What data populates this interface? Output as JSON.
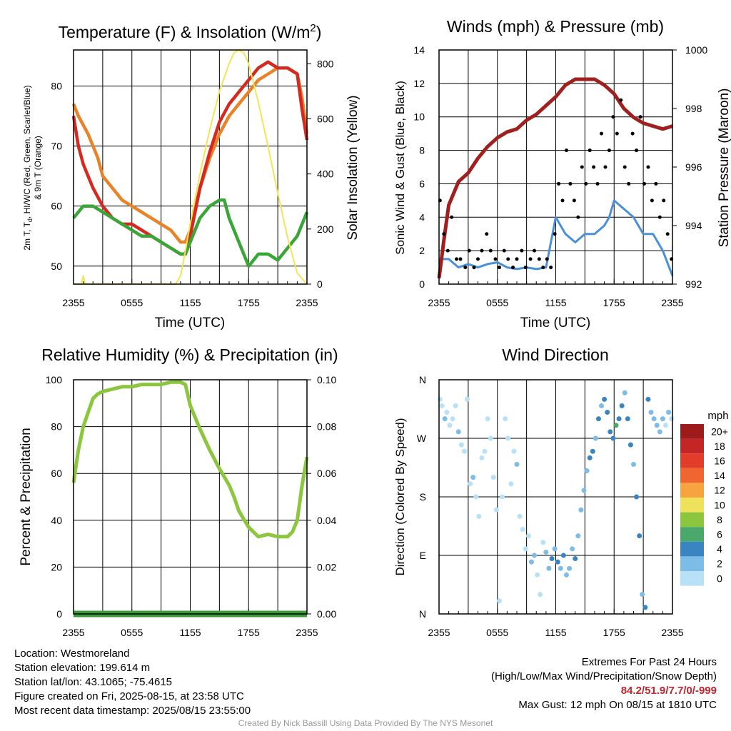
{
  "chart_data": [
    {
      "type": "line",
      "title": "Temperature (F) & Insolation (W/m²)",
      "xlabel": "Time (UTC)",
      "ylabel_left_lines": [
        "2m T, Td, HI/WC (Red, Green, Scarlet/Blue)",
        "& 9m T (Orange)"
      ],
      "ylabel_right": "Solar Insolation (Yellow)",
      "x_ticks": [
        "2355",
        "0555",
        "1155",
        "1755",
        "2355"
      ],
      "x_range_hours": [
        0,
        24
      ],
      "ylim_left": [
        47,
        86
      ],
      "yticks_left": [
        50,
        60,
        70,
        80
      ],
      "ylim_right": [
        0,
        850
      ],
      "yticks_right": [
        0,
        200,
        400,
        600,
        800
      ],
      "grid": true,
      "series": [
        {
          "color": "#e8832a",
          "axis": "left",
          "x": [
            0,
            0.5,
            1.5,
            2.5,
            3,
            4,
            5,
            6,
            7,
            8,
            9,
            10,
            11,
            11.5,
            12,
            13,
            14,
            15,
            16,
            17,
            18,
            19,
            20,
            21,
            22,
            23,
            23.5,
            24
          ],
          "values": [
            77,
            75,
            72,
            68,
            65,
            63,
            61,
            60,
            59,
            58,
            57,
            56,
            54,
            54,
            56,
            63,
            68,
            72,
            75,
            77,
            79,
            81,
            82,
            83,
            83,
            82,
            78,
            72
          ]
        },
        {
          "color": "#d42a20",
          "axis": "left",
          "x": [
            0,
            0.5,
            1,
            1.5,
            2,
            3,
            4,
            5,
            6,
            7,
            8,
            9,
            10,
            11,
            11.5,
            12,
            13,
            14,
            15,
            16,
            17,
            18,
            19,
            20,
            21,
            22,
            23,
            23.5,
            24
          ],
          "values": [
            75,
            70,
            67,
            65,
            63,
            60,
            58,
            57,
            57,
            56,
            55,
            54,
            53,
            52,
            52,
            55,
            63,
            69,
            74,
            77,
            79,
            81,
            83,
            84,
            83,
            83,
            82,
            76,
            71
          ]
        },
        {
          "color": "#3aa637",
          "axis": "left",
          "x": [
            0,
            0.5,
            1,
            2,
            3,
            4,
            5,
            6,
            7,
            8,
            9,
            10,
            11,
            11.5,
            12,
            13,
            14,
            15,
            15.5,
            16,
            17,
            18,
            18.5,
            19,
            20,
            21,
            22,
            22.5,
            23,
            23.5,
            24
          ],
          "values": [
            58,
            59,
            60,
            60,
            59,
            58,
            57,
            56,
            55,
            55,
            54,
            53,
            52,
            52,
            54,
            58,
            60,
            61,
            61,
            58,
            54,
            50,
            51,
            52,
            52,
            51,
            53,
            54,
            55,
            57,
            59
          ]
        },
        {
          "color": "#f5e455",
          "axis": "right",
          "x": [
            0,
            0.8,
            1,
            1.2,
            1.5,
            10.5,
            11,
            11.5,
            12,
            13,
            14,
            15,
            16,
            16.5,
            17,
            17.5,
            18,
            19,
            20,
            21,
            22,
            23,
            24
          ],
          "values": [
            0,
            0,
            30,
            0,
            0,
            0,
            30,
            120,
            220,
            400,
            560,
            700,
            800,
            840,
            850,
            840,
            800,
            660,
            500,
            330,
            170,
            40,
            0
          ]
        }
      ]
    },
    {
      "type": "scatter",
      "title": "Winds (mph) & Pressure (mb)",
      "xlabel": "Time (UTC)",
      "ylabel_left": "Sonic Wind & Gust (Blue, Black)",
      "ylabel_right": "Station Pressure (Maroon)",
      "x_ticks": [
        "2355",
        "0555",
        "1155",
        "1755",
        "2355"
      ],
      "x_range_hours": [
        0,
        24
      ],
      "ylim_left": [
        0,
        14
      ],
      "yticks_left": [
        0,
        2,
        4,
        6,
        8,
        10,
        12,
        14
      ],
      "ylim_right": [
        992,
        1000
      ],
      "yticks_right": [
        992,
        994,
        996,
        998,
        1000
      ],
      "grid": true,
      "pressure": {
        "color": "#a0201f",
        "x": [
          0,
          0.5,
          1,
          2,
          3,
          4,
          5,
          6,
          7,
          8,
          9,
          10,
          11,
          12,
          13,
          13.5,
          14,
          15,
          16,
          17,
          18,
          19,
          20,
          21,
          22,
          23,
          24
        ],
        "values": [
          992.2,
          993.5,
          994.7,
          995.5,
          995.8,
          996.3,
          996.7,
          997.0,
          997.2,
          997.3,
          997.6,
          997.8,
          998.1,
          998.4,
          998.8,
          998.9,
          999.0,
          999.0,
          999.0,
          998.8,
          998.5,
          998.0,
          997.7,
          997.5,
          997.4,
          997.3,
          997.4
        ]
      },
      "wind": {
        "color": "#4a90d9",
        "x": [
          0,
          1,
          2,
          3,
          4,
          5,
          6,
          7,
          8,
          9,
          10,
          11,
          11.5,
          12,
          13,
          14,
          15,
          16,
          17,
          17.5,
          18,
          19,
          20,
          21,
          22,
          23,
          24
        ],
        "values": [
          1.5,
          1.5,
          1.0,
          1.2,
          1.0,
          1.2,
          1.3,
          1.0,
          0.9,
          1.0,
          0.9,
          1.0,
          2.5,
          4.0,
          3.0,
          2.5,
          3.0,
          3.0,
          3.5,
          4.0,
          5.0,
          4.5,
          4.0,
          3.0,
          3.0,
          2.0,
          0.5
        ]
      },
      "gust_color": "#000000",
      "gust": {
        "x": [
          0.1,
          0.5,
          0.9,
          1.3,
          1.8,
          2.2,
          2.7,
          3.1,
          3.6,
          4.0,
          4.4,
          4.9,
          5.3,
          5.8,
          6.2,
          6.7,
          7.1,
          7.6,
          8.0,
          8.5,
          8.9,
          9.4,
          9.8,
          10.3,
          10.7,
          11.1,
          11.5,
          11.9,
          12.3,
          12.7,
          13.1,
          13.5,
          13.9,
          14.3,
          14.7,
          15.1,
          15.5,
          15.9,
          16.3,
          16.7,
          17.1,
          17.5,
          17.9,
          18.3,
          18.7,
          19.1,
          19.5,
          19.9,
          20.3,
          20.7,
          21.1,
          21.5,
          21.9,
          22.3,
          22.7,
          23.1,
          23.5,
          23.9
        ],
        "values": [
          5,
          3,
          2,
          4,
          1.5,
          1.5,
          1,
          2,
          1,
          1.5,
          2,
          3,
          2,
          1.5,
          1,
          2,
          1.5,
          1,
          1.5,
          2,
          1,
          1.5,
          2,
          1.5,
          1,
          1.5,
          1,
          3,
          6,
          5,
          8,
          6,
          5,
          4,
          7,
          6,
          8,
          7,
          6,
          9,
          7,
          8,
          10,
          9,
          11,
          7,
          6,
          9,
          8,
          10,
          6,
          7,
          5,
          6,
          4,
          5,
          3,
          1.5
        ]
      }
    },
    {
      "type": "line",
      "title": "Relative Humidity (%) & Precipitation (in)",
      "ylabel_left": "Percent & Precipitation",
      "x_ticks": [
        "2355",
        "0555",
        "1155",
        "1755",
        "2355"
      ],
      "x_range_hours": [
        0,
        24
      ],
      "ylim_left": [
        0,
        100
      ],
      "yticks_left": [
        0,
        20,
        40,
        60,
        80,
        100
      ],
      "ylim_right": [
        0,
        0.1
      ],
      "yticks_right": [
        "0.00",
        "0.02",
        "0.04",
        "0.06",
        "0.08",
        "0.10"
      ],
      "grid": true,
      "series": [
        {
          "color": "#8cc63f",
          "axis": "left",
          "x": [
            0,
            0.5,
            1,
            1.5,
            2,
            2.5,
            3,
            4,
            5,
            6,
            7,
            8,
            9,
            10,
            11,
            11.5,
            12,
            13,
            14,
            15,
            16,
            16.5,
            17,
            18,
            19,
            20,
            21,
            22,
            22.5,
            23,
            23.5,
            24
          ],
          "values": [
            56,
            70,
            80,
            86,
            92,
            94,
            95,
            96,
            97,
            97,
            98,
            98,
            98,
            99,
            99,
            98,
            89,
            79,
            70,
            62,
            55,
            50,
            44,
            37,
            33,
            34,
            33,
            33,
            35,
            40,
            55,
            67
          ]
        },
        {
          "color": "#3a9a3a",
          "axis": "right",
          "x": [
            0,
            24
          ],
          "values": [
            0,
            0
          ]
        }
      ]
    },
    {
      "type": "scatter",
      "title": "Wind Direction",
      "ylabel_left": "Direction (Colored By Speed)",
      "x_ticks": [
        "2355",
        "0555",
        "1155",
        "1755",
        "2355"
      ],
      "x_range_hours": [
        0,
        24
      ],
      "ylim_left": [
        0,
        360
      ],
      "yticks_left": [
        "N",
        "E",
        "S",
        "W",
        "N"
      ],
      "grid": true,
      "legend_title": "mph",
      "legend": [
        {
          "label": "20+",
          "color": "#9e1b1b"
        },
        {
          "label": "18",
          "color": "#c42626"
        },
        {
          "label": "16",
          "color": "#e13d2a"
        },
        {
          "label": "14",
          "color": "#f06530"
        },
        {
          "label": "12",
          "color": "#f7a340"
        },
        {
          "label": "10",
          "color": "#efe15a"
        },
        {
          "label": "8",
          "color": "#8cc63f"
        },
        {
          "label": "6",
          "color": "#4aa86a"
        },
        {
          "label": "4",
          "color": "#3a84c2"
        },
        {
          "label": "2",
          "color": "#7cbce6"
        },
        {
          "label": "0",
          "color": "#b8e1f7"
        }
      ],
      "points_x": [
        0.1,
        0.3,
        0.6,
        0.8,
        1.1,
        1.4,
        1.7,
        2.0,
        2.3,
        2.6,
        2.9,
        3.2,
        3.5,
        3.8,
        4.1,
        4.4,
        4.7,
        5.0,
        5.3,
        5.6,
        5.9,
        6.2,
        6.5,
        6.8,
        7.1,
        7.4,
        7.7,
        8.0,
        8.3,
        8.6,
        8.9,
        9.2,
        9.5,
        9.8,
        10.1,
        10.4,
        10.7,
        11.0,
        11.3,
        11.6,
        11.9,
        12.2,
        12.5,
        12.8,
        13.1,
        13.4,
        13.7,
        14.0,
        14.3,
        14.6,
        14.9,
        15.2,
        15.5,
        15.8,
        16.1,
        16.4,
        16.7,
        17.0,
        17.3,
        17.6,
        17.9,
        18.2,
        18.5,
        18.8,
        19.1,
        19.4,
        19.7,
        20.0,
        20.3,
        20.6,
        20.9,
        21.2,
        21.5,
        21.8,
        22.1,
        22.4,
        22.7,
        23.0,
        23.3,
        23.6,
        23.9
      ],
      "points_dir": [
        330,
        320,
        300,
        310,
        290,
        300,
        320,
        280,
        260,
        250,
        330,
        200,
        210,
        180,
        150,
        240,
        250,
        300,
        270,
        210,
        160,
        20,
        180,
        300,
        270,
        200,
        250,
        230,
        150,
        130,
        100,
        120,
        80,
        90,
        60,
        30,
        110,
        95,
        70,
        85,
        100,
        80,
        70,
        90,
        60,
        70,
        100,
        85,
        120,
        160,
        190,
        220,
        240,
        250,
        270,
        300,
        320,
        330,
        310,
        280,
        270,
        290,
        300,
        320,
        340,
        300,
        260,
        230,
        180,
        120,
        30,
        10,
        330,
        310,
        300,
        290,
        280,
        300,
        290,
        310,
        300
      ],
      "points_speed": [
        1,
        1,
        2,
        1,
        1,
        1,
        1,
        2,
        1,
        1,
        1,
        1,
        2,
        1,
        1,
        1,
        1,
        1,
        1,
        1,
        1,
        1,
        1,
        1,
        1,
        1,
        1,
        2,
        1,
        1,
        1,
        1,
        2,
        2,
        1,
        1,
        1,
        3,
        3,
        4,
        3,
        4,
        3,
        4,
        3,
        3,
        2,
        4,
        3,
        3,
        2,
        3,
        4,
        4,
        3,
        4,
        3,
        4,
        5,
        4,
        4,
        6,
        4,
        5,
        3,
        4,
        4,
        3,
        5,
        4,
        2,
        5,
        4,
        3,
        2,
        3,
        3,
        2,
        1,
        2,
        1
      ]
    }
  ],
  "info_left": [
    "Location: Westmoreland",
    "Station elevation: 199.614 m",
    "Station lat/lon: 43.1065; -75.4615",
    "Figure created on Fri, 2025-08-15, at 23:58 UTC",
    "Most recent data timestamp: 2025/08/15 23:55:00"
  ],
  "extremes": {
    "title": "Extremes For Past 24 Hours",
    "subtitle": "(High/Low/Max Wind/Precipitation/Snow Depth)",
    "values": "84.2/51.9/7.7/0/-999",
    "max_gust": "Max Gust: 12 mph On 08/15 at 1810 UTC"
  },
  "credit": "Created By Nick Bassill Using Data Provided By The NYS Mesonet"
}
